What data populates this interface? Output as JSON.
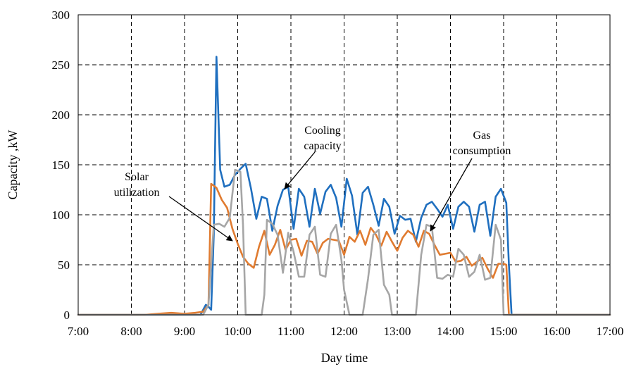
{
  "chart_data": {
    "type": "line",
    "title": "",
    "xlabel": "Day time",
    "ylabel": "Capacity ,kW",
    "xlim": [
      7,
      17
    ],
    "ylim": [
      0,
      300
    ],
    "x_ticks": [
      "7:00",
      "8:00",
      "9:00",
      "10:00",
      "11:00",
      "12:00",
      "13:00",
      "14:00",
      "15:00",
      "16:00",
      "17:00"
    ],
    "y_ticks": [
      "0",
      "50",
      "100",
      "150",
      "200",
      "250",
      "300"
    ],
    "grid": true,
    "legend": "none (series identified by in-plot annotations)",
    "annotations": [
      {
        "lines": [
          "Cooling",
          "capacity"
        ],
        "series": "cooling"
      },
      {
        "lines": [
          "Gas",
          "consumption"
        ],
        "series": "gas"
      },
      {
        "lines": [
          "Solar",
          "utilization"
        ],
        "series": "solar"
      }
    ],
    "series": [
      {
        "key": "cooling",
        "color": "#1f6fbf",
        "x": [
          7.0,
          9.3,
          9.4,
          9.45,
          9.5,
          9.55,
          9.6,
          9.67,
          9.75,
          9.85,
          9.95,
          10.05,
          10.15,
          10.25,
          10.35,
          10.45,
          10.55,
          10.65,
          10.75,
          10.85,
          10.95,
          11.05,
          11.15,
          11.25,
          11.35,
          11.45,
          11.55,
          11.65,
          11.75,
          11.85,
          11.95,
          12.05,
          12.15,
          12.25,
          12.35,
          12.45,
          12.55,
          12.65,
          12.75,
          12.85,
          12.95,
          13.05,
          13.15,
          13.25,
          13.35,
          13.45,
          13.55,
          13.65,
          13.75,
          13.85,
          13.95,
          14.05,
          14.15,
          14.25,
          14.35,
          14.45,
          14.55,
          14.65,
          14.75,
          14.85,
          14.95,
          15.05,
          15.1,
          15.15,
          17.0
        ],
        "y": [
          0,
          0,
          10,
          8,
          5,
          80,
          258,
          145,
          128,
          130,
          140,
          146,
          151,
          126,
          96,
          118,
          116,
          84,
          109,
          125,
          128,
          86,
          126,
          118,
          88,
          126,
          101,
          123,
          130,
          117,
          88,
          136,
          119,
          80,
          122,
          128,
          110,
          89,
          116,
          108,
          81,
          99,
          95,
          96,
          73,
          97,
          110,
          113,
          106,
          98,
          110,
          86,
          108,
          113,
          108,
          83,
          110,
          113,
          79,
          118,
          126,
          112,
          50,
          0,
          0
        ]
      },
      {
        "key": "solar",
        "color": "#e07b30",
        "x": [
          7.0,
          8.25,
          8.5,
          8.75,
          9.0,
          9.2,
          9.35,
          9.45,
          9.5,
          9.6,
          9.7,
          9.8,
          9.9,
          10.0,
          10.1,
          10.2,
          10.3,
          10.4,
          10.5,
          10.6,
          10.7,
          10.8,
          10.9,
          11.0,
          11.1,
          11.2,
          11.3,
          11.4,
          11.5,
          11.6,
          11.7,
          11.8,
          11.9,
          12.0,
          12.1,
          12.2,
          12.3,
          12.4,
          12.5,
          12.6,
          12.7,
          12.8,
          12.9,
          13.0,
          13.1,
          13.2,
          13.3,
          13.4,
          13.5,
          13.6,
          13.7,
          13.8,
          13.9,
          14.0,
          14.1,
          14.2,
          14.3,
          14.4,
          14.5,
          14.6,
          14.7,
          14.8,
          14.9,
          15.0,
          15.05,
          15.1,
          17.0
        ],
        "y": [
          0,
          0,
          1,
          2,
          1,
          2,
          3,
          10,
          131,
          127,
          115,
          107,
          86,
          71,
          58,
          51,
          47,
          68,
          84,
          60,
          70,
          85,
          65,
          75,
          76,
          59,
          74,
          73,
          61,
          72,
          76,
          75,
          74,
          60,
          78,
          73,
          84,
          70,
          87,
          80,
          69,
          83,
          73,
          64,
          77,
          84,
          80,
          68,
          84,
          81,
          70,
          60,
          61,
          62,
          53,
          54,
          58,
          49,
          53,
          57,
          46,
          37,
          51,
          51,
          50,
          0,
          0
        ]
      },
      {
        "key": "gas",
        "color": "#a6a6a6",
        "x": [
          7.0,
          9.35,
          9.45,
          9.55,
          9.65,
          9.75,
          9.85,
          9.95,
          10.05,
          10.1,
          10.15,
          10.2,
          10.45,
          10.5,
          10.55,
          10.65,
          10.75,
          10.85,
          10.95,
          11.05,
          11.15,
          11.25,
          11.35,
          11.45,
          11.55,
          11.65,
          11.75,
          11.85,
          11.95,
          12.0,
          12.1,
          12.35,
          12.45,
          12.55,
          12.65,
          12.75,
          12.85,
          12.9,
          13.0,
          13.1,
          13.35,
          13.45,
          13.55,
          13.65,
          13.75,
          13.85,
          13.95,
          14.05,
          14.15,
          14.25,
          14.35,
          14.45,
          14.55,
          14.65,
          14.75,
          14.85,
          14.95,
          15.0,
          17.0
        ],
        "y": [
          0,
          0,
          10,
          90,
          91,
          88,
          97,
          145,
          143,
          90,
          0,
          0,
          0,
          20,
          95,
          91,
          80,
          42,
          82,
          63,
          38,
          38,
          80,
          88,
          40,
          38,
          81,
          90,
          55,
          25,
          0,
          0,
          36,
          80,
          85,
          30,
          20,
          0,
          0,
          0,
          0,
          60,
          90,
          88,
          37,
          36,
          40,
          38,
          66,
          60,
          38,
          43,
          60,
          35,
          37,
          90,
          75,
          0,
          0
        ]
      }
    ]
  }
}
